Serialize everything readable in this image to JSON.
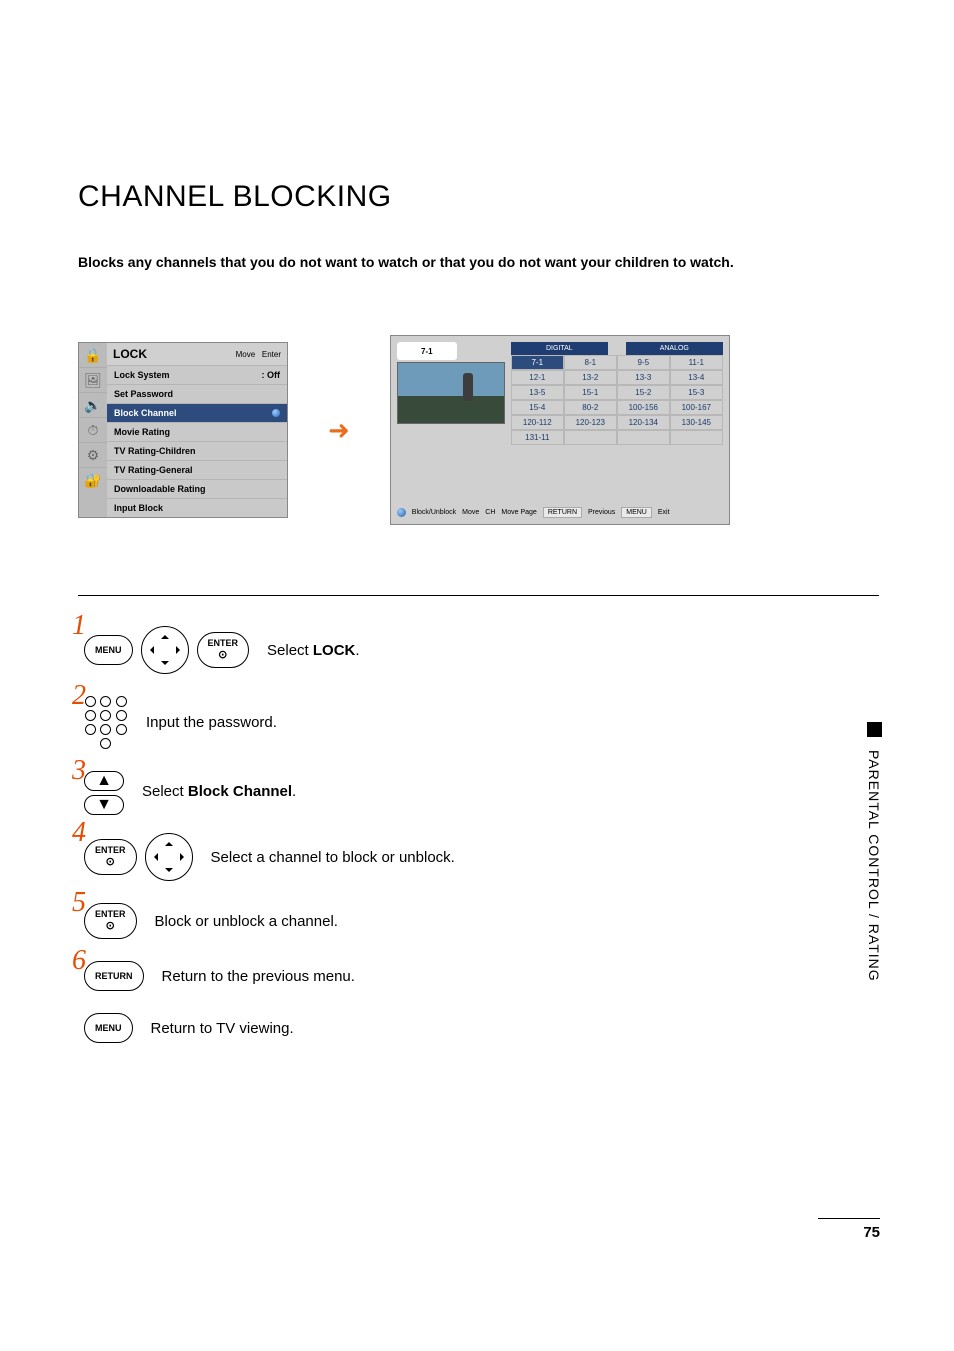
{
  "title": "CHANNEL BLOCKING",
  "subtitle": "Blocks any channels that you do not want to watch or that you do not want your children to watch.",
  "lock_menu": {
    "header": "LOCK",
    "nav_move": "Move",
    "nav_enter": "Enter",
    "items": [
      {
        "label": "Lock System",
        "value": ": Off"
      },
      {
        "label": "Set Password"
      },
      {
        "label": "Block Channel",
        "highlight": true
      },
      {
        "label": "Movie Rating"
      },
      {
        "label": "TV Rating-Children"
      },
      {
        "label": "TV Rating-General"
      },
      {
        "label": "Downloadable Rating"
      },
      {
        "label": "Input Block"
      }
    ]
  },
  "channel_panel": {
    "current": "7-1",
    "tabs": [
      "DIGITAL",
      "ANALOG"
    ],
    "cells": [
      "7-1",
      "8-1",
      "9-5",
      "11-1",
      "12-1",
      "13-2",
      "13-3",
      "13-4",
      "13-5",
      "15-1",
      "15-2",
      "15-3",
      "15-4",
      "80-2",
      "100-156",
      "100-167",
      "120-112",
      "120-123",
      "120-134",
      "130-145",
      "131-11",
      "",
      "",
      ""
    ],
    "bottom": {
      "block": "Block/Unblock",
      "move": "Move",
      "ch": "CH",
      "movepage": "Move Page",
      "return_btn": "RETURN",
      "previous": "Previous",
      "menu_btn": "MENU",
      "exit": "Exit"
    }
  },
  "steps": {
    "s1": {
      "menu": "MENU",
      "enter": "ENTER",
      "text_pre": "Select ",
      "text_bold": "LOCK",
      "text_post": "."
    },
    "s2": {
      "text": "Input the password."
    },
    "s3": {
      "text_pre": "Select ",
      "text_bold": "Block Channel",
      "text_post": "."
    },
    "s4": {
      "enter": "ENTER",
      "text": "Select a channel to block or unblock."
    },
    "s5": {
      "enter": "ENTER",
      "text": "Block or unblock a channel."
    },
    "s6": {
      "return": "RETURN",
      "text": "Return to the previous menu."
    },
    "s7": {
      "menu": "MENU",
      "text": "Return to TV viewing."
    }
  },
  "side": "PARENTAL CONTROL / RATING",
  "page": "75",
  "colors": {
    "accent_step": "#e64d00",
    "menu_hl": "#2d4b7d",
    "tab_bg": "#1f3d70"
  }
}
